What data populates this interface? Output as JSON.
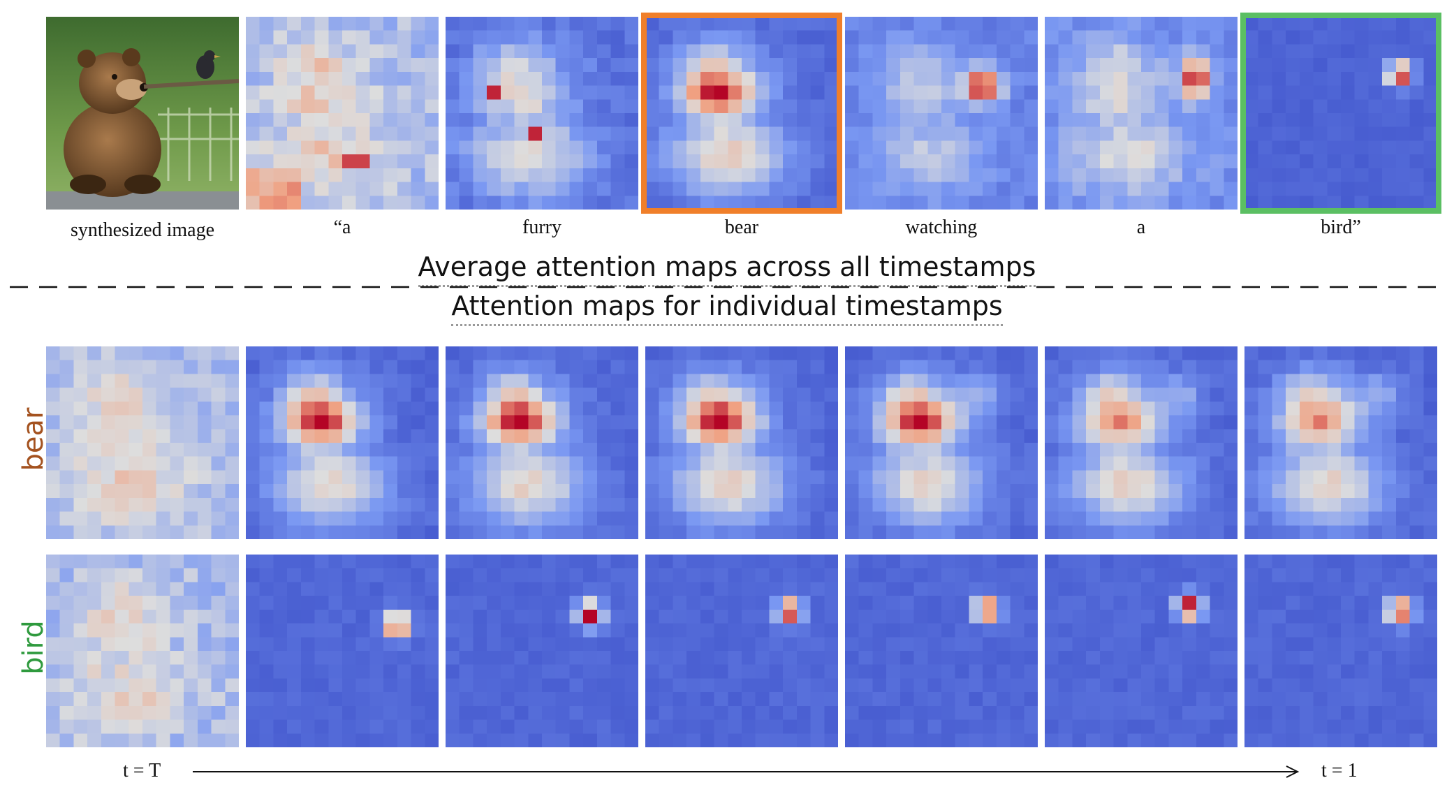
{
  "captions": {
    "image": "synthesized image",
    "tokens": [
      "“a",
      "furry",
      "bear",
      "watching",
      "a",
      "bird”"
    ]
  },
  "titles": {
    "average": "Average attention maps across all timestamps",
    "individual": "Attention maps for individual  timestamps"
  },
  "row_labels": {
    "bear": "bear",
    "bird": "bird"
  },
  "time_labels": {
    "start": "t = T",
    "end": "t = 1"
  },
  "colors": {
    "bear_label": "#a4521f",
    "bird_label": "#2f9a3e",
    "highlight_bear": "#f07f2a",
    "highlight_bird": "#5bbf63",
    "low": "#3d50c9",
    "mid": "#dddddd",
    "high": "#b40426"
  },
  "icons": {
    "photo": "bear-and-bird-photo",
    "arrow": "time-arrow"
  }
}
